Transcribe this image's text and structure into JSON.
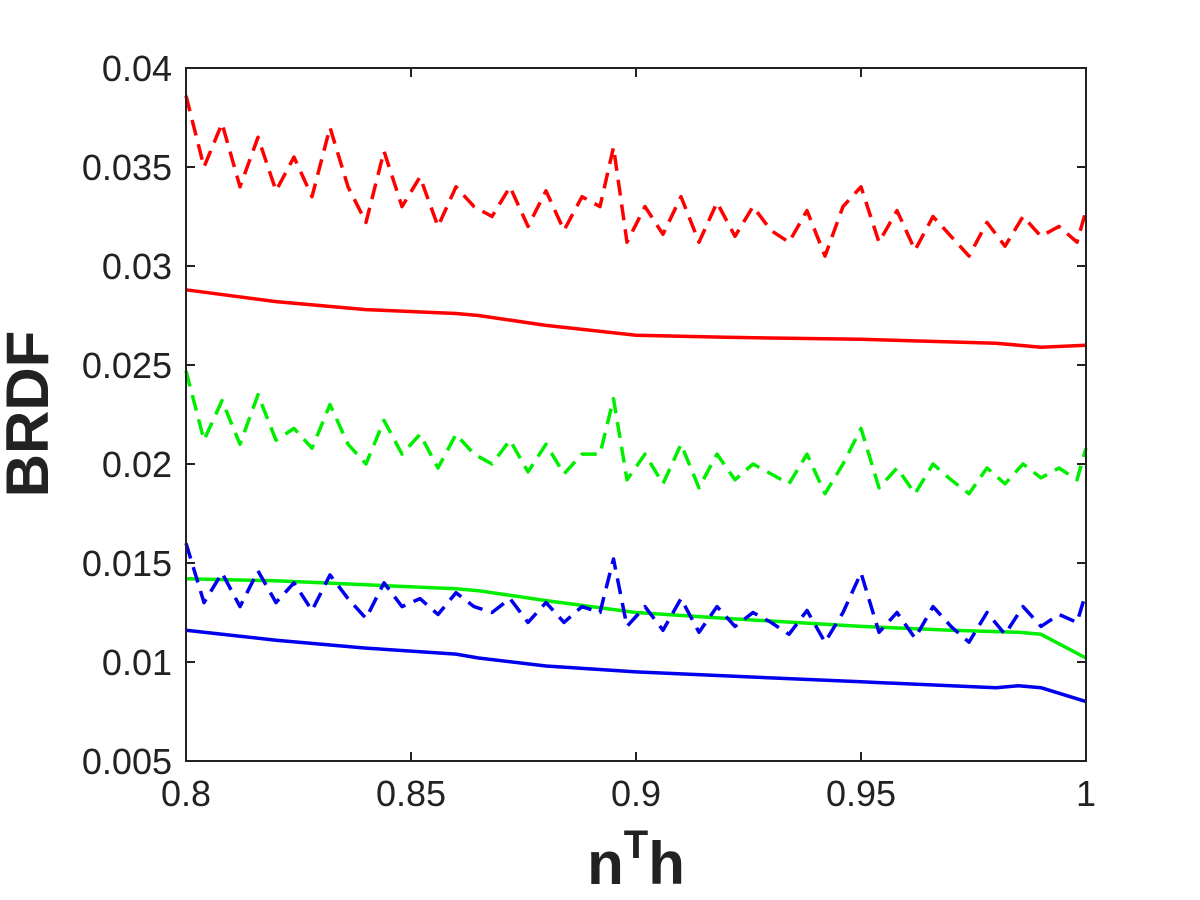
{
  "chart_data": {
    "type": "line",
    "title": "",
    "xlabel": "n",
    "xlabel_sup": "T",
    "xlabel_suffix": "h",
    "ylabel": "BRDF",
    "xlim": [
      0.8,
      1.0
    ],
    "ylim": [
      0.005,
      0.04
    ],
    "x_ticks": [
      0.8,
      0.85,
      0.9,
      0.95,
      1.0
    ],
    "x_tick_labels": [
      "0.8",
      "0.85",
      "0.9",
      "0.95",
      "1"
    ],
    "y_ticks": [
      0.005,
      0.01,
      0.015,
      0.02,
      0.025,
      0.03,
      0.035,
      0.04
    ],
    "y_tick_labels": [
      "0.005",
      "0.01",
      "0.015",
      "0.02",
      "0.025",
      "0.03",
      "0.035",
      "0.04"
    ],
    "grid": false,
    "legend": "none",
    "series": [
      {
        "color": "#ff0000",
        "style": "solid",
        "x": [
          0.8,
          0.82,
          0.84,
          0.86,
          0.865,
          0.88,
          0.9,
          0.92,
          0.95,
          0.98,
          0.99,
          1.0
        ],
        "y": [
          0.0288,
          0.0282,
          0.0278,
          0.0276,
          0.0275,
          0.027,
          0.0265,
          0.0264,
          0.0263,
          0.0261,
          0.0259,
          0.026
        ]
      },
      {
        "color": "#00ee00",
        "style": "solid",
        "x": [
          0.8,
          0.82,
          0.84,
          0.86,
          0.865,
          0.88,
          0.9,
          0.92,
          0.95,
          0.97,
          0.985,
          0.99,
          1.0
        ],
        "y": [
          0.0142,
          0.0141,
          0.0139,
          0.0137,
          0.0136,
          0.0131,
          0.0125,
          0.0122,
          0.0118,
          0.0116,
          0.0115,
          0.0114,
          0.0102
        ]
      },
      {
        "color": "#0000ee",
        "style": "solid",
        "x": [
          0.8,
          0.82,
          0.84,
          0.86,
          0.865,
          0.88,
          0.9,
          0.92,
          0.95,
          0.98,
          0.985,
          0.99,
          1.0
        ],
        "y": [
          0.0116,
          0.0111,
          0.0107,
          0.0104,
          0.0102,
          0.0098,
          0.0095,
          0.0093,
          0.009,
          0.0087,
          0.0088,
          0.0087,
          0.008
        ]
      },
      {
        "color": "#ff0000",
        "style": "dashed",
        "x": [
          0.8,
          0.804,
          0.808,
          0.812,
          0.816,
          0.82,
          0.824,
          0.828,
          0.832,
          0.836,
          0.84,
          0.844,
          0.848,
          0.852,
          0.856,
          0.86,
          0.864,
          0.868,
          0.872,
          0.876,
          0.88,
          0.884,
          0.888,
          0.892,
          0.895,
          0.898,
          0.902,
          0.906,
          0.91,
          0.914,
          0.918,
          0.922,
          0.926,
          0.93,
          0.934,
          0.938,
          0.942,
          0.946,
          0.95,
          0.954,
          0.958,
          0.962,
          0.966,
          0.97,
          0.974,
          0.978,
          0.982,
          0.986,
          0.99,
          0.994,
          0.998,
          1.0
        ],
        "y": [
          0.0386,
          0.035,
          0.0372,
          0.034,
          0.0365,
          0.0338,
          0.0355,
          0.0335,
          0.037,
          0.034,
          0.0322,
          0.0358,
          0.033,
          0.0345,
          0.032,
          0.034,
          0.033,
          0.0325,
          0.034,
          0.032,
          0.0338,
          0.0318,
          0.0335,
          0.033,
          0.036,
          0.0312,
          0.033,
          0.0316,
          0.0335,
          0.0312,
          0.0332,
          0.0315,
          0.033,
          0.0318,
          0.0312,
          0.0328,
          0.0305,
          0.033,
          0.034,
          0.0312,
          0.0328,
          0.0308,
          0.0325,
          0.0315,
          0.0305,
          0.0322,
          0.031,
          0.0325,
          0.0315,
          0.032,
          0.0312,
          0.0328
        ]
      },
      {
        "color": "#00ee00",
        "style": "dashed",
        "x": [
          0.8,
          0.804,
          0.808,
          0.812,
          0.816,
          0.82,
          0.824,
          0.828,
          0.832,
          0.836,
          0.84,
          0.844,
          0.848,
          0.852,
          0.856,
          0.86,
          0.864,
          0.868,
          0.872,
          0.876,
          0.88,
          0.884,
          0.888,
          0.892,
          0.895,
          0.898,
          0.902,
          0.906,
          0.91,
          0.914,
          0.918,
          0.922,
          0.926,
          0.93,
          0.934,
          0.938,
          0.942,
          0.946,
          0.95,
          0.954,
          0.958,
          0.962,
          0.966,
          0.97,
          0.974,
          0.978,
          0.982,
          0.986,
          0.99,
          0.994,
          0.998,
          1.0
        ],
        "y": [
          0.0247,
          0.0212,
          0.0232,
          0.021,
          0.0235,
          0.0212,
          0.0218,
          0.0208,
          0.023,
          0.021,
          0.02,
          0.0222,
          0.0205,
          0.0215,
          0.0198,
          0.0215,
          0.0205,
          0.02,
          0.0212,
          0.0196,
          0.021,
          0.0195,
          0.0205,
          0.0205,
          0.0233,
          0.0192,
          0.0205,
          0.019,
          0.021,
          0.0188,
          0.0205,
          0.0192,
          0.02,
          0.0195,
          0.019,
          0.0205,
          0.0185,
          0.02,
          0.0218,
          0.0188,
          0.0198,
          0.0185,
          0.02,
          0.0192,
          0.0185,
          0.0198,
          0.019,
          0.02,
          0.0193,
          0.0198,
          0.0192,
          0.0208
        ]
      },
      {
        "color": "#0000ee",
        "style": "dashed",
        "x": [
          0.8,
          0.804,
          0.808,
          0.812,
          0.816,
          0.82,
          0.824,
          0.828,
          0.832,
          0.836,
          0.84,
          0.844,
          0.848,
          0.852,
          0.856,
          0.86,
          0.864,
          0.868,
          0.872,
          0.876,
          0.88,
          0.884,
          0.888,
          0.892,
          0.895,
          0.898,
          0.902,
          0.906,
          0.91,
          0.914,
          0.918,
          0.922,
          0.926,
          0.93,
          0.934,
          0.938,
          0.942,
          0.946,
          0.95,
          0.954,
          0.958,
          0.962,
          0.966,
          0.97,
          0.974,
          0.978,
          0.982,
          0.986,
          0.99,
          0.994,
          0.998,
          1.0
        ],
        "y": [
          0.016,
          0.013,
          0.0145,
          0.0128,
          0.0146,
          0.013,
          0.014,
          0.0126,
          0.0144,
          0.0132,
          0.0122,
          0.014,
          0.0128,
          0.0132,
          0.0124,
          0.0135,
          0.0128,
          0.0125,
          0.0132,
          0.012,
          0.013,
          0.012,
          0.0128,
          0.0125,
          0.0152,
          0.0118,
          0.0128,
          0.0116,
          0.0132,
          0.0115,
          0.0128,
          0.0118,
          0.0125,
          0.012,
          0.0114,
          0.0126,
          0.011,
          0.0125,
          0.0145,
          0.0115,
          0.0125,
          0.0112,
          0.0128,
          0.0118,
          0.011,
          0.0125,
          0.0114,
          0.0128,
          0.0118,
          0.0124,
          0.012,
          0.0135
        ]
      }
    ]
  }
}
